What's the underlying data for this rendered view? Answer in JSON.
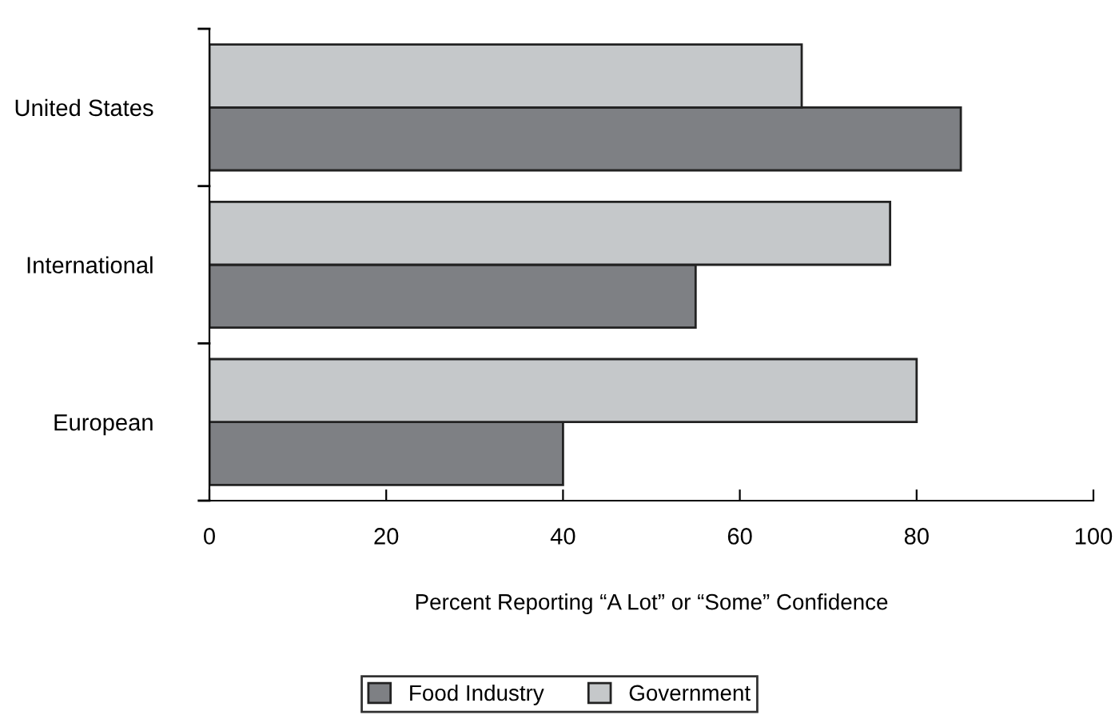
{
  "chart_data": {
    "type": "bar",
    "orientation": "horizontal",
    "categories": [
      "United States",
      "International",
      "European"
    ],
    "series": [
      {
        "name": "Food Industry",
        "color": "#7e8084",
        "values": [
          85,
          55,
          40
        ]
      },
      {
        "name": "Government",
        "color": "#c5c8ca",
        "values": [
          67,
          77,
          80
        ]
      }
    ],
    "xlim": [
      0,
      100
    ],
    "xticks": [
      0,
      20,
      40,
      60,
      80,
      100
    ],
    "xlabel": "Percent Reporting “A Lot” or “Some” Confidence",
    "grid": false,
    "legend": "bottom"
  }
}
